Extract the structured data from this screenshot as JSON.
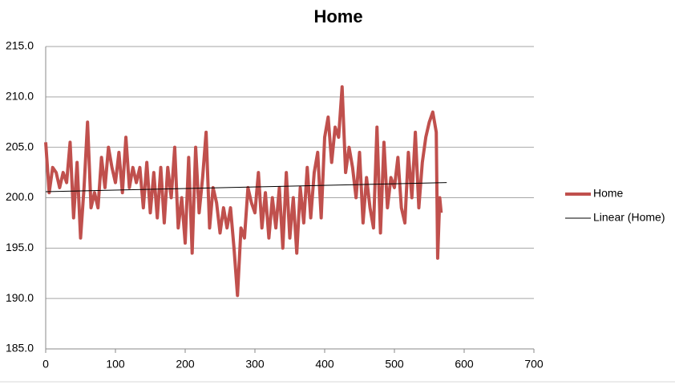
{
  "chart_data": {
    "type": "line",
    "title": "Home",
    "x": [
      0,
      5,
      10,
      15,
      20,
      25,
      30,
      35,
      40,
      45,
      50,
      55,
      60,
      65,
      70,
      75,
      80,
      85,
      90,
      95,
      100,
      105,
      110,
      115,
      120,
      125,
      130,
      135,
      140,
      145,
      150,
      155,
      160,
      165,
      170,
      175,
      180,
      185,
      190,
      195,
      200,
      205,
      210,
      215,
      220,
      225,
      230,
      235,
      240,
      245,
      250,
      255,
      260,
      265,
      270,
      275,
      280,
      285,
      290,
      295,
      300,
      305,
      310,
      315,
      320,
      325,
      330,
      335,
      340,
      345,
      350,
      355,
      360,
      365,
      370,
      375,
      380,
      385,
      390,
      395,
      400,
      405,
      410,
      415,
      420,
      425,
      430,
      435,
      440,
      445,
      450,
      455,
      460,
      465,
      470,
      475,
      480,
      485,
      490,
      495,
      500,
      505,
      510,
      515,
      520,
      525,
      530,
      535,
      540,
      545,
      550,
      555,
      560,
      562,
      565,
      567
    ],
    "series": [
      {
        "name": "Home",
        "color": "#c0504d",
        "values": [
          205.5,
          200.5,
          203,
          202.5,
          201,
          202.5,
          201.5,
          205.5,
          198,
          203.5,
          196,
          201,
          207.5,
          199,
          200.5,
          199,
          204,
          201,
          205,
          203,
          201.5,
          204.5,
          200.5,
          206,
          201,
          203,
          201.5,
          203,
          199,
          203.5,
          198.5,
          202.5,
          198,
          203,
          197.5,
          203,
          200,
          205,
          197,
          200,
          195.5,
          204,
          194.5,
          205,
          198.5,
          202,
          206.5,
          197,
          201,
          199.5,
          196.5,
          199,
          197,
          199,
          195,
          190.3,
          197,
          196,
          201,
          199.5,
          198.5,
          202.5,
          197,
          200.5,
          196,
          200,
          197,
          201,
          195,
          202.5,
          196,
          200,
          194.5,
          201,
          197.5,
          203,
          198,
          202.5,
          204.5,
          198,
          206,
          208,
          203.5,
          207,
          206,
          211,
          202.5,
          205,
          203,
          200,
          204.5,
          197.5,
          202,
          199,
          197,
          207,
          196.5,
          205.5,
          199,
          202,
          201,
          204,
          199,
          197.5,
          204.5,
          200,
          206.5,
          199,
          203.5,
          206,
          207.5,
          208.5,
          206.5,
          194,
          200,
          198.5
        ]
      },
      {
        "name": "Linear (Home)",
        "color": "#000000",
        "x": [
          0,
          575
        ],
        "values": [
          200.6,
          201.5
        ]
      }
    ],
    "xlim": [
      0,
      700
    ],
    "xticks": [
      0,
      100,
      200,
      300,
      400,
      500,
      600,
      700
    ],
    "ylim": [
      185,
      215
    ],
    "yticks": [
      {
        "value": 185,
        "label": "185.0"
      },
      {
        "value": 190,
        "label": "190.0"
      },
      {
        "value": 195,
        "label": "195.0"
      },
      {
        "value": 200,
        "label": "200.0"
      },
      {
        "value": 205,
        "label": "205.0"
      },
      {
        "value": 210,
        "label": "210.0"
      },
      {
        "value": 215,
        "label": "215.0"
      }
    ],
    "grid": true,
    "legend": "right"
  }
}
